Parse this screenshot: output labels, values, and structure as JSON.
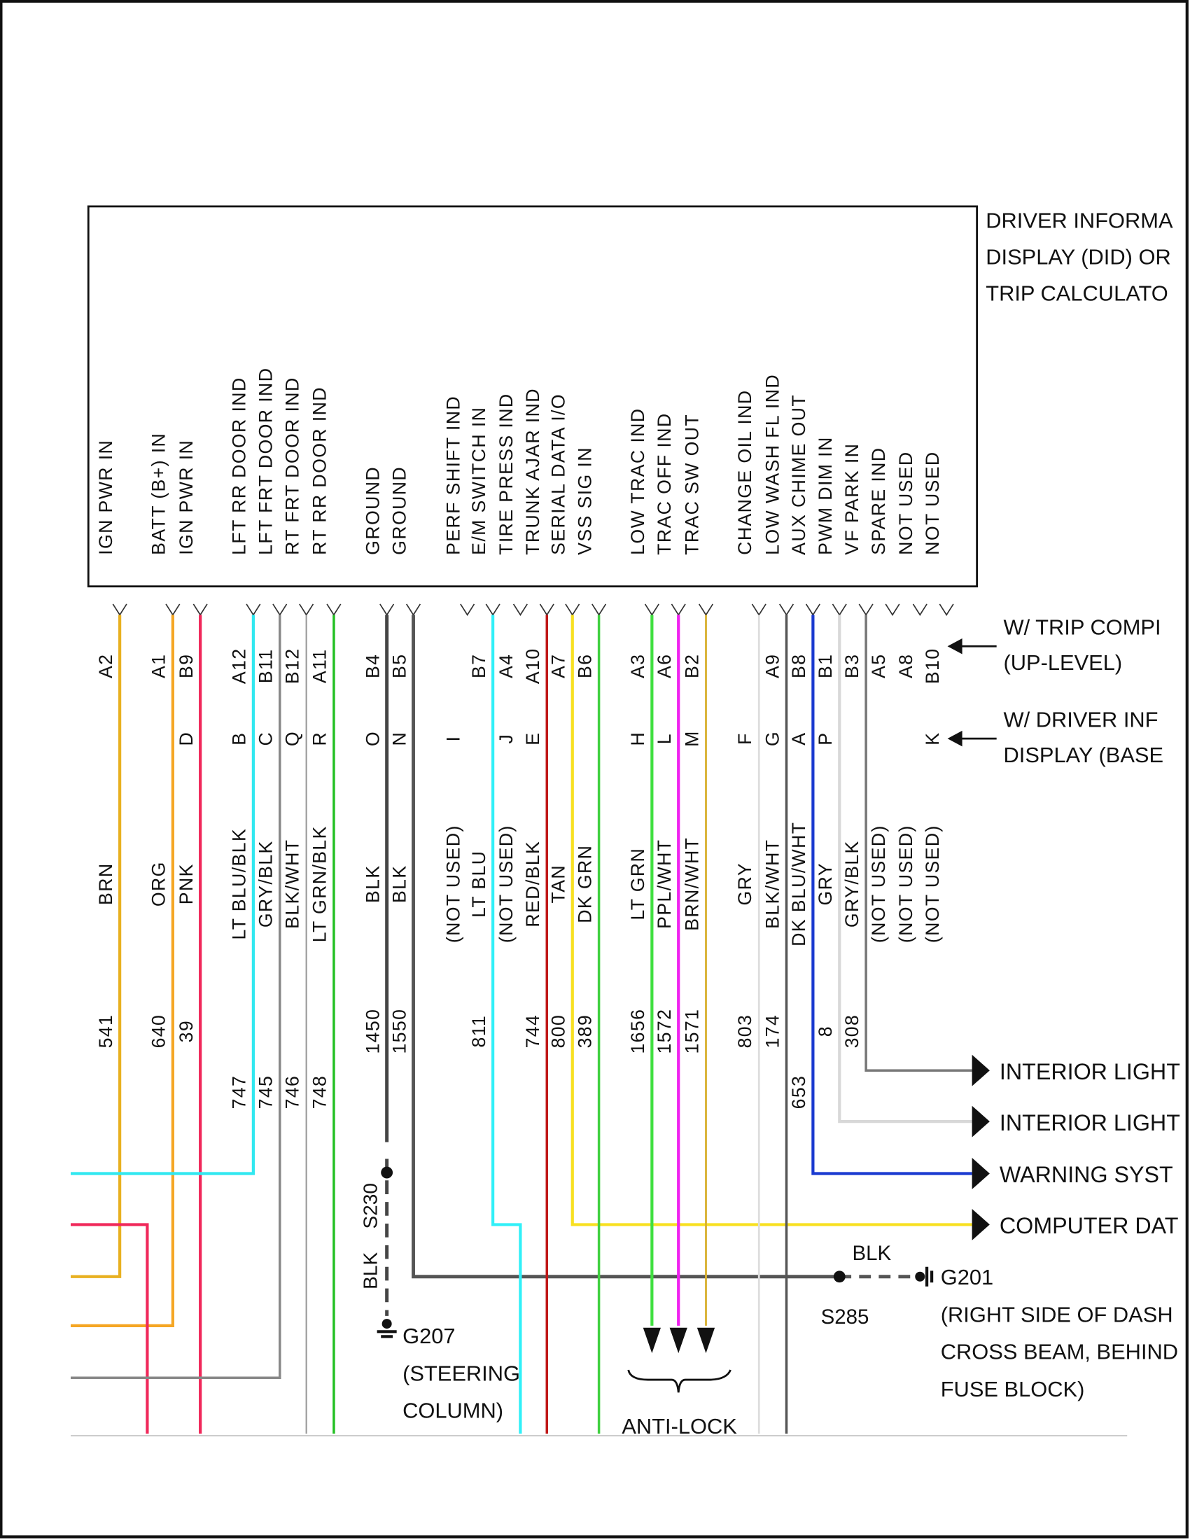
{
  "component": {
    "title_lines": [
      "DRIVER INFORMA",
      "DISPLAY (DID) OR",
      "TRIP CALCULATO"
    ]
  },
  "variants": {
    "row1": [
      "W/ TRIP COMPI",
      "(UP-LEVEL)"
    ],
    "row2": [
      "W/ DRIVER INF",
      "DISPLAY (BASE"
    ]
  },
  "columns": [
    {
      "func": "IGN PWR IN",
      "pin1": "A2",
      "pin2": "",
      "color": "BRN",
      "circuit": "541",
      "wire": "#e8b020"
    },
    {
      "func": "BATT (B+) IN",
      "pin1": "A1",
      "pin2": "",
      "color": "ORG",
      "circuit": "640",
      "wire": "#f5a623"
    },
    {
      "func": "IGN PWR IN",
      "pin1": "B9",
      "pin2": "D",
      "color": "PNK",
      "circuit": "39",
      "wire": "#f0285a"
    },
    {
      "func": "LFT RR DOOR IND",
      "pin1": "A12",
      "pin2": "B",
      "color": "LT BLU/BLK",
      "circuit": "747",
      "wire": "#30e8f0"
    },
    {
      "func": "LFT FRT DOOR IND",
      "pin1": "B11",
      "pin2": "C",
      "color": "GRY/BLK",
      "circuit": "745",
      "wire": "#888888"
    },
    {
      "func": "RT FRT DOOR IND",
      "pin1": "B12",
      "pin2": "Q",
      "color": "BLK/WHT",
      "circuit": "746",
      "wire": "#cccccc"
    },
    {
      "func": "RT RR DOOR IND",
      "pin1": "A11",
      "pin2": "R",
      "color": "LT GRN/BLK",
      "circuit": "748",
      "wire": "#22c022"
    },
    {
      "func": "GROUND",
      "pin1": "B4",
      "pin2": "O",
      "color": "BLK",
      "circuit": "1450",
      "wire": "#444444"
    },
    {
      "func": "GROUND",
      "pin1": "B5",
      "pin2": "N",
      "color": "BLK",
      "circuit": "1550",
      "wire": "#555555"
    },
    {
      "func": "PERF SHIFT IND",
      "pin1": "",
      "pin2": "I",
      "color": "(NOT USED)",
      "circuit": "",
      "wire": ""
    },
    {
      "func": "E/M SWITCH IN",
      "pin1": "B7",
      "pin2": "",
      "color": "LT BLU",
      "circuit": "811",
      "wire": "#30f0f8"
    },
    {
      "func": "TIRE PRESS IND",
      "pin1": "A4",
      "pin2": "J",
      "color": "(NOT USED)",
      "circuit": "",
      "wire": ""
    },
    {
      "func": "TRUNK AJAR IND",
      "pin1": "A10",
      "pin2": "E",
      "color": "RED/BLK",
      "circuit": "744",
      "wire": "#c01818"
    },
    {
      "func": "SERIAL DATA I/O",
      "pin1": "A7",
      "pin2": "",
      "color": "TAN",
      "circuit": "800",
      "wire": "#f8e020"
    },
    {
      "func": "VSS SIG IN",
      "pin1": "B6",
      "pin2": "",
      "color": "DK GRN",
      "circuit": "389",
      "wire": "#40d040"
    },
    {
      "func": "LOW TRAC IND",
      "pin1": "A3",
      "pin2": "H",
      "color": "LT GRN",
      "circuit": "1656",
      "wire": "#40e040"
    },
    {
      "func": "TRAC OFF IND",
      "pin1": "A6",
      "pin2": "L",
      "color": "PPL/WHT",
      "circuit": "1572",
      "wire": "#f020f0"
    },
    {
      "func": "TRAC SW OUT",
      "pin1": "B2",
      "pin2": "M",
      "color": "BRN/WHT",
      "circuit": "1571",
      "wire": "#d8b030"
    },
    {
      "func": "CHANGE OIL IND",
      "pin1": "",
      "pin2": "F",
      "color": "GRY",
      "circuit": "803",
      "wire": "#dddddd"
    },
    {
      "func": "LOW WASH FL IND",
      "pin1": "A9",
      "pin2": "G",
      "color": "BLK/WHT",
      "circuit": "174",
      "wire": "#555555"
    },
    {
      "func": "AUX CHIME OUT",
      "pin1": "B8",
      "pin2": "A",
      "color": "DK BLU/WHT",
      "circuit": "653",
      "wire": "#1a3ad0"
    },
    {
      "func": "PWM DIM IN",
      "pin1": "B1",
      "pin2": "P",
      "color": "GRY",
      "circuit": "8",
      "wire": "#d8d8d8"
    },
    {
      "func": "VF PARK IN",
      "pin1": "B3",
      "pin2": "",
      "color": "GRY/BLK",
      "circuit": "308",
      "wire": "#777777"
    },
    {
      "func": "SPARE IND",
      "pin1": "A5",
      "pin2": "",
      "color": "(NOT USED)",
      "circuit": "",
      "wire": ""
    },
    {
      "func": "NOT USED",
      "pin1": "A8",
      "pin2": "",
      "color": "(NOT USED)",
      "circuit": "",
      "wire": ""
    },
    {
      "func": "NOT USED",
      "pin1": "B10",
      "pin2": "K",
      "color": "(NOT USED)",
      "circuit": "",
      "wire": ""
    }
  ],
  "destinations": [
    "INTERIOR LIGHT",
    "INTERIOR LIGHT",
    "WARNING SYST",
    "COMPUTER DAT"
  ],
  "splices": {
    "s230": "S230",
    "s285": "S285",
    "blk_left": "BLK",
    "blk_right": "BLK"
  },
  "grounds": {
    "g207": [
      "G207",
      "(STEERING",
      "COLUMN)"
    ],
    "g201": [
      "G201",
      "(RIGHT SIDE OF DASH",
      "CROSS BEAM, BEHIND",
      "FUSE BLOCK)"
    ]
  },
  "antilock": "ANTI-LOCK"
}
